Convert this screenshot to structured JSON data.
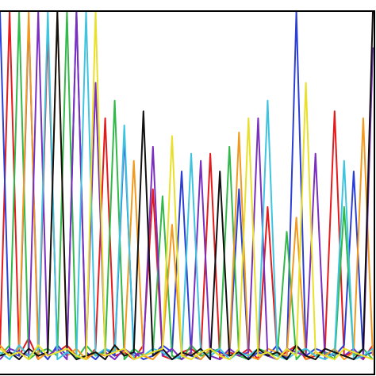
{
  "chart_data": {
    "type": "line",
    "x": [
      0,
      1,
      2,
      3,
      4,
      5,
      6,
      7,
      8,
      9,
      10,
      11,
      12,
      13,
      14,
      15,
      16,
      17,
      18,
      19,
      20,
      21,
      22,
      23,
      24,
      25,
      26,
      27,
      28,
      29,
      30,
      31,
      32,
      33,
      34,
      35,
      36,
      37,
      38,
      39
    ],
    "xlim": [
      0,
      39
    ],
    "ylim": [
      0,
      100
    ],
    "series": [
      {
        "color": "#e41a1c",
        "values": [
          5,
          100,
          3,
          8,
          2,
          95,
          4,
          6,
          3,
          2,
          5,
          70,
          3,
          4,
          2,
          6,
          50,
          3,
          2,
          4,
          5,
          3,
          60,
          2,
          4,
          3,
          5,
          2,
          45,
          3,
          4,
          6,
          2,
          3,
          5,
          72,
          3,
          4,
          2,
          6
        ]
      },
      {
        "color": "#2b3fd6",
        "values": [
          100,
          4,
          3,
          98,
          5,
          2,
          6,
          3,
          100,
          4,
          2,
          5,
          3,
          65,
          4,
          2,
          3,
          6,
          4,
          55,
          3,
          2,
          5,
          4,
          3,
          50,
          2,
          4,
          3,
          6,
          2,
          100,
          3,
          5,
          4,
          3,
          6,
          55,
          3,
          4
        ]
      },
      {
        "color": "#33b84a",
        "values": [
          3,
          6,
          100,
          2,
          4,
          5,
          3,
          100,
          2,
          6,
          3,
          4,
          75,
          2,
          5,
          3,
          4,
          48,
          3,
          2,
          6,
          3,
          4,
          5,
          62,
          3,
          2,
          5,
          4,
          3,
          38,
          2,
          5,
          3,
          4,
          2,
          45,
          3,
          5,
          2
        ]
      },
      {
        "color": "#f29a1f",
        "values": [
          6,
          3,
          5,
          100,
          2,
          4,
          100,
          3,
          5,
          2,
          4,
          3,
          5,
          4,
          58,
          3,
          2,
          5,
          40,
          3,
          4,
          2,
          5,
          3,
          4,
          66,
          3,
          2,
          5,
          4,
          3,
          42,
          2,
          4,
          3,
          5,
          2,
          4,
          70,
          3
        ]
      },
      {
        "color": "#7b2fbf",
        "values": [
          2,
          5,
          4,
          3,
          100,
          3,
          5,
          2,
          100,
          3,
          80,
          4,
          2,
          5,
          3,
          4,
          62,
          3,
          5,
          2,
          4,
          58,
          3,
          2,
          5,
          3,
          4,
          70,
          3,
          2,
          5,
          4,
          3,
          60,
          2,
          4,
          3,
          5,
          2,
          90
        ]
      },
      {
        "color": "#3fc4e0",
        "values": [
          4,
          2,
          6,
          3,
          5,
          100,
          2,
          4,
          3,
          100,
          3,
          5,
          4,
          68,
          2,
          3,
          5,
          4,
          2,
          3,
          60,
          4,
          3,
          5,
          2,
          4,
          3,
          5,
          75,
          3,
          2,
          4,
          5,
          3,
          2,
          4,
          58,
          2,
          3,
          5
        ]
      },
      {
        "color": "#111111",
        "values": [
          3,
          4,
          2,
          5,
          3,
          4,
          100,
          5,
          2,
          3,
          4,
          2,
          6,
          3,
          4,
          72,
          3,
          5,
          2,
          4,
          3,
          5,
          2,
          55,
          3,
          4,
          2,
          5,
          3,
          4,
          2,
          6,
          3,
          2,
          5,
          4,
          3,
          2,
          5,
          100
        ]
      },
      {
        "color": "#e8e02a",
        "values": [
          5,
          3,
          4,
          2,
          6,
          3,
          4,
          5,
          3,
          2,
          100,
          3,
          4,
          5,
          2,
          3,
          4,
          5,
          65,
          3,
          2,
          4,
          5,
          3,
          2,
          5,
          70,
          3,
          4,
          2,
          5,
          3,
          80,
          4,
          3,
          2,
          5,
          4,
          3,
          2
        ]
      }
    ]
  }
}
